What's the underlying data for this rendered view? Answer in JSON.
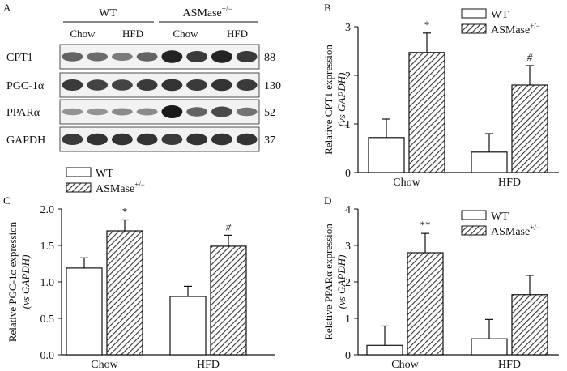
{
  "panel_letters": {
    "a": "A",
    "b": "B",
    "c": "C",
    "d": "D"
  },
  "blot": {
    "groups": [
      "WT",
      "ASMase"
    ],
    "group_superscript": "+/−",
    "diets": [
      "Chow",
      "HFD",
      "Chow",
      "HFD"
    ],
    "proteins": [
      {
        "name": "CPT1",
        "kda": "88",
        "bands": [
          0.55,
          0.5,
          0.4,
          0.55,
          0.95,
          0.8,
          0.95,
          0.8
        ]
      },
      {
        "name": "PGC-1α",
        "kda": "130",
        "bands": [
          0.8,
          0.75,
          0.75,
          0.8,
          0.85,
          0.8,
          0.85,
          0.8
        ]
      },
      {
        "name": "PPARα",
        "kda": "52",
        "bands": [
          0.25,
          0.25,
          0.3,
          0.3,
          1.0,
          0.55,
          0.7,
          0.45
        ]
      },
      {
        "name": "GAPDH",
        "kda": "37",
        "bands": [
          0.8,
          0.85,
          0.85,
          0.85,
          0.8,
          0.85,
          0.85,
          0.85
        ]
      }
    ]
  },
  "colors": {
    "wt_fill": "#ffffff",
    "asm_fill": "#555555",
    "stroke": "#111111",
    "band": "#1a1a1a"
  },
  "chart_data": [
    {
      "id": "B",
      "type": "bar",
      "categories": [
        "Chow",
        "HFD"
      ],
      "ylabel": "Relative CPT1 expression",
      "ylabel2": "(vs GAPDH)",
      "ylim": [
        0,
        3
      ],
      "yticks": [
        0,
        1,
        2,
        3
      ],
      "tick_decimals": 0,
      "series": [
        {
          "name": "WT",
          "values": [
            0.72,
            0.42
          ],
          "errors": [
            0.38,
            0.38
          ]
        },
        {
          "name": "ASMase",
          "sup": "+/−",
          "values": [
            2.47,
            1.8
          ],
          "errors": [
            0.4,
            0.4
          ]
        }
      ],
      "annotations": [
        "*",
        "#"
      ]
    },
    {
      "id": "C",
      "type": "bar",
      "categories": [
        "Chow",
        "HFD"
      ],
      "ylabel": "Relative PGC-1α expression",
      "ylabel2": "(vs GAPDH)",
      "ylim": [
        0,
        2
      ],
      "yticks": [
        0,
        0.5,
        1,
        1.5,
        2
      ],
      "tick_decimals": 1,
      "series": [
        {
          "name": "WT",
          "values": [
            1.19,
            0.8
          ],
          "errors": [
            0.14,
            0.14
          ]
        },
        {
          "name": "ASMase",
          "sup": "+/−",
          "values": [
            1.7,
            1.49
          ],
          "errors": [
            0.15,
            0.15
          ]
        }
      ],
      "annotations": [
        "*",
        "#"
      ]
    },
    {
      "id": "D",
      "type": "bar",
      "categories": [
        "Chow",
        "HFD"
      ],
      "ylabel": "Relative PPARα expression",
      "ylabel2": "(vs GAPDH)",
      "ylim": [
        0,
        4
      ],
      "yticks": [
        0,
        1,
        2,
        3,
        4
      ],
      "tick_decimals": 0,
      "series": [
        {
          "name": "WT",
          "values": [
            0.26,
            0.44
          ],
          "errors": [
            0.53,
            0.53
          ]
        },
        {
          "name": "ASMase",
          "sup": "+/−",
          "values": [
            2.8,
            1.65
          ],
          "errors": [
            0.53,
            0.53
          ]
        }
      ],
      "annotations": [
        "**",
        ""
      ]
    }
  ]
}
